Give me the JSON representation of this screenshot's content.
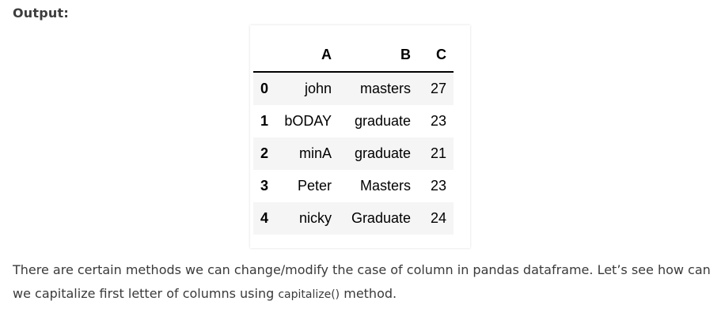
{
  "output_label": "Output:",
  "table": {
    "columns": [
      "",
      "A",
      "B",
      "C"
    ],
    "rows": [
      {
        "index": "0",
        "A": "john",
        "B": "masters",
        "C": "27"
      },
      {
        "index": "1",
        "A": "bODAY",
        "B": "graduate",
        "C": "23"
      },
      {
        "index": "2",
        "A": "minA",
        "B": "graduate",
        "C": "21"
      },
      {
        "index": "3",
        "A": "Peter",
        "B": "Masters",
        "C": "23"
      },
      {
        "index": "4",
        "A": "nicky",
        "B": "Graduate",
        "C": "24"
      }
    ]
  },
  "paragraph": {
    "line1": "There are certain methods we can change/modify the case of column in pandas dataframe. Let’s see how can",
    "line2_before": "we capitalize first letter of columns using ",
    "code": "capitalize()",
    "line2_after": " method."
  }
}
